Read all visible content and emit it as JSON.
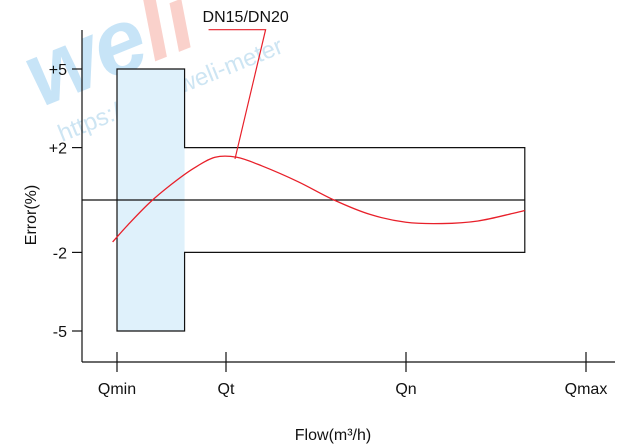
{
  "chart_data": {
    "type": "line",
    "title": "",
    "xlabel": "Flow(m³/h)",
    "ylabel": "Error(%)",
    "x_categories": [
      "Qmin",
      "Qt",
      "Qn",
      "Qmax"
    ],
    "y_ticks": [
      {
        "value": 5,
        "label": "+5"
      },
      {
        "value": 2,
        "label": "+2"
      },
      {
        "value": -2,
        "label": "-2"
      },
      {
        "value": -5,
        "label": "-5"
      }
    ],
    "ylim": [
      -6.1,
      6.1
    ],
    "xlim": [
      -0.2,
      3.0
    ],
    "error_limits": {
      "low_flow_zone": {
        "x_from": 0,
        "x_to": 0.62,
        "upper": 5,
        "lower": -5,
        "fill": "#dff1fb"
      },
      "high_flow_zone": {
        "x_from": 0.62,
        "x_to": 2.66,
        "upper": 2,
        "lower": -2
      }
    },
    "reference_line": {
      "y": 0
    },
    "series": [
      {
        "name": "DN15/DN20",
        "color": "#e8202a",
        "x": [
          -0.04,
          0.1,
          0.3,
          0.5,
          0.7,
          0.9,
          1.06,
          1.2,
          1.4,
          1.6,
          1.8,
          2.0,
          2.2,
          2.4,
          2.6,
          2.66
        ],
        "y": [
          -1.6,
          -0.95,
          -0.1,
          0.6,
          1.2,
          1.63,
          1.63,
          1.3,
          0.7,
          0.0,
          -0.55,
          -0.85,
          -0.9,
          -0.8,
          -0.5,
          -0.4
        ]
      }
    ],
    "annotations": [
      {
        "text": "DN15/DN20",
        "leader_points": [
          [
            0.84,
            6.5
          ],
          [
            1.22,
            6.5
          ],
          [
            1.05,
            1.57
          ]
        ]
      }
    ]
  },
  "watermark": {
    "brand": "weli",
    "url": "https://www.weli-meter"
  }
}
